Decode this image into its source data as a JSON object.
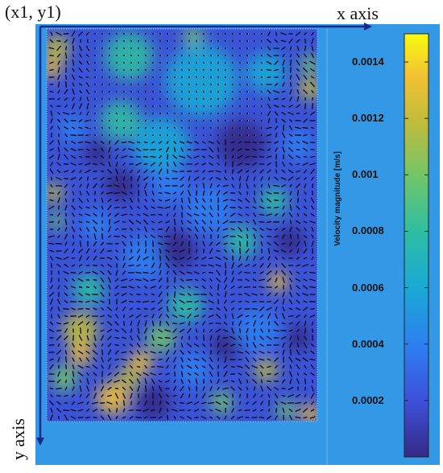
{
  "labels": {
    "origin": "(x1, y1)",
    "x_axis": "x axis",
    "y_axis": "y axis"
  },
  "colorbar": {
    "label": "Velocity magnitude [m/s]",
    "ticks": [
      "0.0014",
      "0.0012",
      "0.001",
      "0.0008",
      "0.0006",
      "0.0004",
      "0.0002"
    ],
    "range": [
      0.0,
      0.0015
    ],
    "colors": [
      "#352a87",
      "#3e4fd8",
      "#2d7ef0",
      "#1aa9d5",
      "#2dbda4",
      "#6fc66a",
      "#bfbc3c",
      "#f2c034",
      "#f9fb0e"
    ]
  },
  "colors": {
    "background": "#3399e6",
    "arrow": "#0a0a14",
    "axis": "#1a2a8c"
  }
}
